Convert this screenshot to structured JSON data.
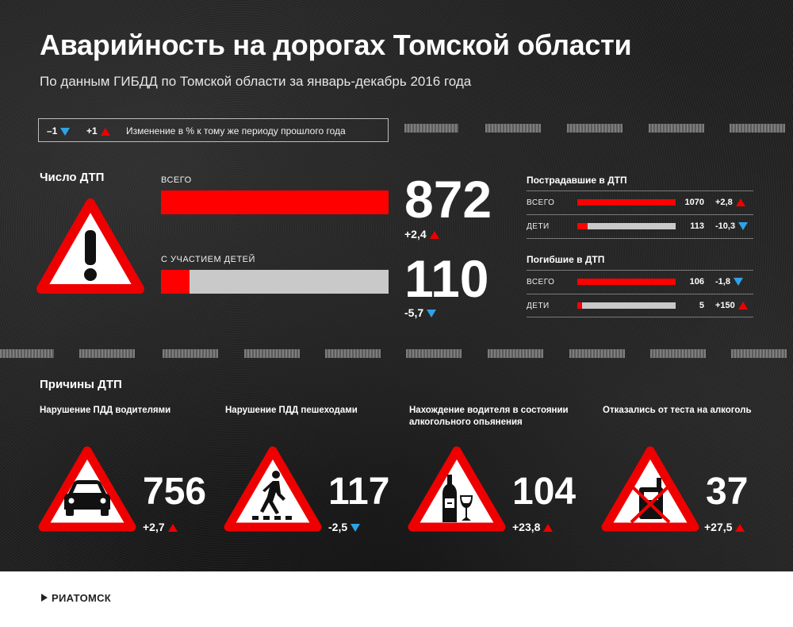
{
  "title": "Аварийность на дорогах Томской области",
  "subtitle": "По данным ГИБДД по Томской области за январь-декабрь 2016 года",
  "legend": {
    "minus": "–1",
    "plus": "+1",
    "text": "Изменение в % к тому же периоду прошлого года"
  },
  "colors": {
    "accent": "#ff0000",
    "down": "#2fa3e6",
    "bar_bg": "#c9c9c9"
  },
  "accidents": {
    "label": "Число ДТП",
    "total": {
      "label": "всего",
      "value": "872",
      "change": "+2,4",
      "direction": "up",
      "bar_fraction": 1.0
    },
    "children": {
      "label": "с участием детей",
      "value": "110",
      "change": "-5,7",
      "direction": "down",
      "bar_fraction": 0.126
    }
  },
  "injured": {
    "title": "Пострадавшие в ДТП",
    "total": {
      "label": "всего",
      "value": "1070",
      "change": "+2,8",
      "direction": "up",
      "bar_fraction": 1.0
    },
    "children": {
      "label": "дети",
      "value": "113",
      "change": "-10,3",
      "direction": "down",
      "bar_fraction": 0.106
    }
  },
  "killed": {
    "title": "Погибшие в ДТП",
    "total": {
      "label": "всего",
      "value": "106",
      "change": "-1,8",
      "direction": "down",
      "bar_fraction": 1.0
    },
    "children": {
      "label": "дети",
      "value": "5",
      "change": "+150",
      "direction": "up",
      "bar_fraction": 0.047
    }
  },
  "causes": {
    "label": "Причины ДТП",
    "items": [
      {
        "title": "Нарушение ПДД водителями",
        "value": "756",
        "change": "+2,7",
        "direction": "up",
        "icon": "car-icon"
      },
      {
        "title": "Нарушение ПДД пешеходами",
        "value": "117",
        "change": "-2,5",
        "direction": "down",
        "icon": "pedestrian-icon"
      },
      {
        "title": "Нахождение водителя в состоянии алкогольного опьянения",
        "value": "104",
        "change": "+23,8",
        "direction": "up",
        "icon": "alcohol-icon"
      },
      {
        "title": "Отказались от теста на алкоголь",
        "value": "37",
        "change": "+27,5",
        "direction": "up",
        "icon": "no-test-icon"
      }
    ]
  },
  "footer": {
    "logo": "РИАТОМСК"
  }
}
